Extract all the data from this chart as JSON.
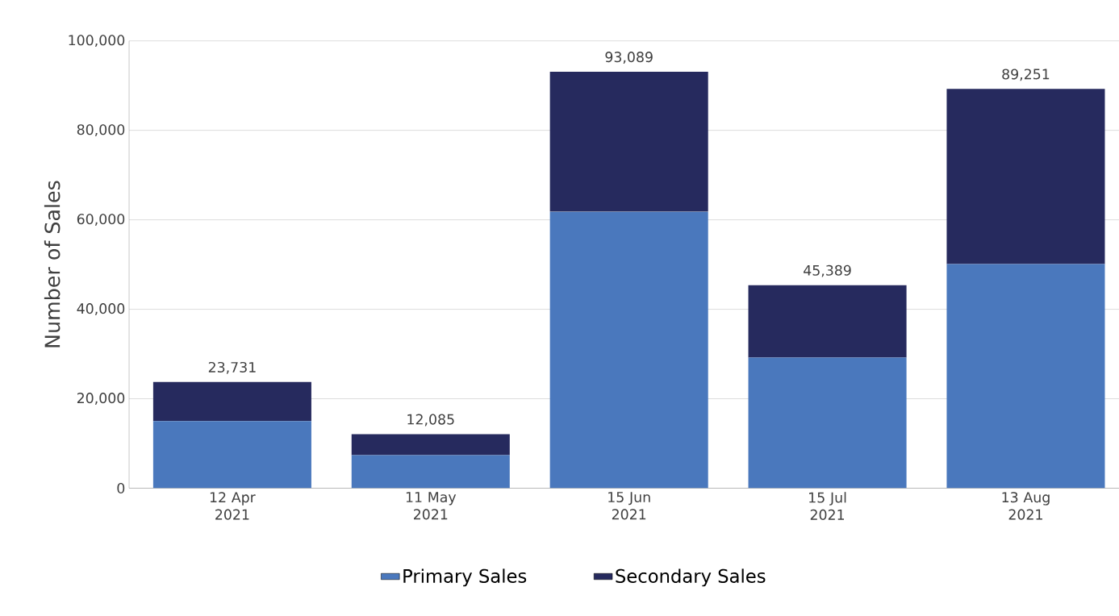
{
  "chart_data": {
    "type": "bar",
    "stacked": true,
    "categories": [
      "12 Apr 2021",
      "11 May 2021",
      "15 Jun 2021",
      "15 Jul 2021",
      "13 Aug 2021"
    ],
    "series": [
      {
        "name": "Primary Sales",
        "color": "#4a78bd",
        "values": [
          15000,
          7400,
          61800,
          29200,
          50100
        ]
      },
      {
        "name": "Secondary Sales",
        "color": "#262a5e",
        "values": [
          8731,
          4685,
          31289,
          16189,
          39151
        ]
      }
    ],
    "totals": [
      "23,731",
      "12,085",
      "93,089",
      "45,389",
      "89,251"
    ],
    "ylabel": "Number of Sales",
    "ylim": [
      0,
      100000
    ],
    "yticks": [
      {
        "value": 0,
        "label": "0"
      },
      {
        "value": 20000,
        "label": "20,000"
      },
      {
        "value": 40000,
        "label": "40,000"
      },
      {
        "value": 60000,
        "label": "60,000"
      },
      {
        "value": 80000,
        "label": "80,000"
      },
      {
        "value": 100000,
        "label": "100,000"
      }
    ],
    "grid": "y",
    "legend": "bottom"
  }
}
